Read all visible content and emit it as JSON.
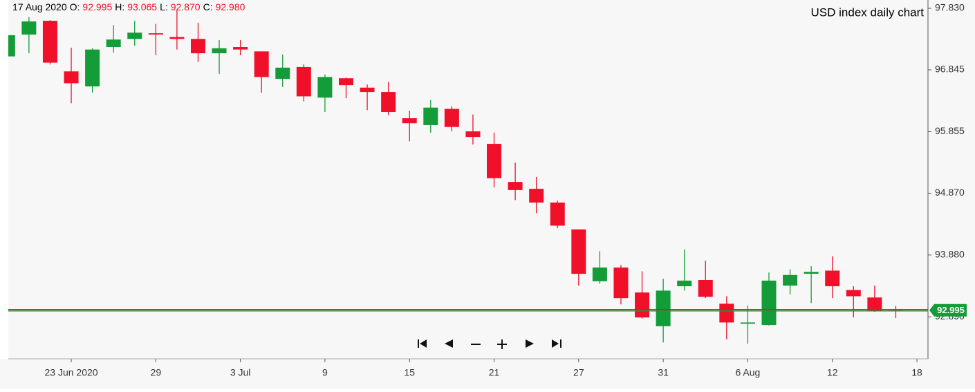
{
  "chart_data": {
    "type": "candlestick",
    "title": "USD index daily chart",
    "header": {
      "date": "17 Aug 2020",
      "fields": [
        {
          "label": "O:",
          "value": "92.995"
        },
        {
          "label": "H:",
          "value": "93.065"
        },
        {
          "label": "L:",
          "value": "92.870"
        },
        {
          "label": "C:",
          "value": "92.980"
        }
      ]
    },
    "categories": [
      null,
      null,
      null,
      "23 Jun 2020",
      null,
      null,
      null,
      "29",
      null,
      null,
      null,
      "3 Jul",
      null,
      null,
      null,
      "9",
      null,
      null,
      null,
      "15",
      null,
      null,
      null,
      "21",
      null,
      null,
      null,
      "27",
      null,
      null,
      null,
      "31",
      null,
      null,
      null,
      "6 Aug",
      null,
      null,
      null,
      "12",
      null,
      null,
      null,
      "18"
    ],
    "open": [
      97.06,
      97.41,
      97.63,
      96.82,
      96.58,
      97.21,
      97.34,
      97.43,
      97.37,
      97.34,
      97.11,
      97.21,
      97.14,
      96.7,
      96.89,
      96.4,
      96.71,
      96.56,
      96.49,
      96.07,
      95.96,
      96.22,
      95.86,
      95.66,
      95.05,
      94.94,
      94.72,
      94.29,
      93.46,
      93.68,
      93.28,
      92.74,
      93.38,
      93.48,
      93.1,
      92.78,
      92.76,
      93.39,
      93.58,
      93.63,
      93.32,
      93.2,
      92.995,
      null
    ],
    "high": [
      97.41,
      97.69,
      97.64,
      97.2,
      97.19,
      97.56,
      97.63,
      97.58,
      97.8,
      97.6,
      97.32,
      97.32,
      97.14,
      97.09,
      96.93,
      96.77,
      96.72,
      96.61,
      96.65,
      96.19,
      96.36,
      96.26,
      96.13,
      95.84,
      95.36,
      95.13,
      94.75,
      94.29,
      93.94,
      93.72,
      93.62,
      93.5,
      93.97,
      93.79,
      93.22,
      93.07,
      93.6,
      93.65,
      93.7,
      93.86,
      93.38,
      93.39,
      93.065,
      null
    ],
    "low": [
      97.05,
      97.11,
      96.93,
      96.31,
      96.48,
      97.12,
      97.23,
      97.08,
      97.17,
      96.97,
      96.78,
      97.08,
      96.48,
      96.57,
      96.34,
      96.17,
      96.39,
      96.2,
      96.12,
      95.7,
      95.84,
      95.86,
      95.65,
      94.96,
      94.76,
      94.55,
      94.31,
      93.39,
      93.42,
      93.09,
      92.86,
      92.48,
      93.31,
      93.19,
      92.53,
      92.46,
      92.75,
      93.25,
      93.11,
      93.19,
      92.88,
      92.97,
      92.87,
      null
    ],
    "close": [
      97.4,
      97.62,
      96.96,
      96.63,
      97.17,
      97.33,
      97.44,
      97.41,
      97.34,
      97.11,
      97.19,
      97.17,
      96.73,
      96.88,
      96.42,
      96.73,
      96.6,
      96.49,
      96.17,
      95.99,
      96.24,
      95.93,
      95.77,
      95.11,
      94.92,
      94.72,
      94.35,
      93.58,
      93.68,
      93.19,
      92.88,
      93.31,
      93.47,
      93.21,
      92.8,
      92.8,
      93.47,
      93.56,
      93.61,
      93.38,
      93.22,
      92.99,
      92.98,
      null
    ],
    "up_color": "#149c38",
    "down_color": "#f0102a",
    "ylim": [
      92.218,
      97.963
    ],
    "yticks": [
      {
        "value": 97.83,
        "label": "97.830"
      },
      {
        "value": 96.845,
        "label": "96.845"
      },
      {
        "value": 95.855,
        "label": "95.855"
      },
      {
        "value": 94.87,
        "label": "94.870"
      },
      {
        "value": 93.88,
        "label": "93.880"
      },
      {
        "value": 92.89,
        "label": "92.890"
      }
    ],
    "last_price": {
      "value": 92.995,
      "label": "92.995"
    }
  }
}
